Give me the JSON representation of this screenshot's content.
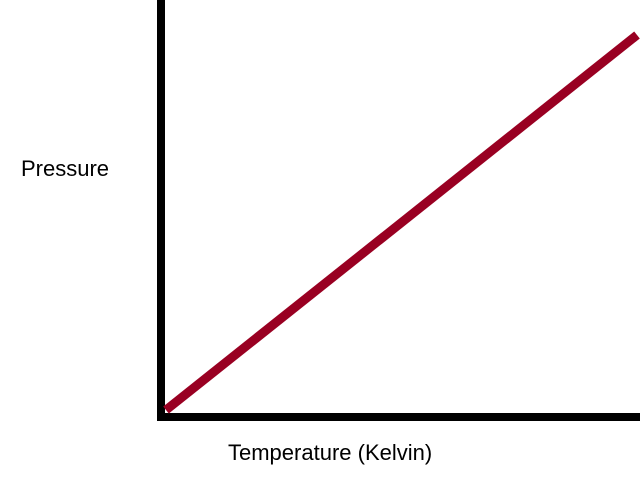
{
  "chart_data": {
    "type": "line",
    "title": "",
    "xlabel": "Temperature (Kelvin)",
    "ylabel": "Pressure",
    "xlim": [
      0,
      1
    ],
    "ylim": [
      0,
      1
    ],
    "grid": false,
    "series": [
      {
        "color": "#990022",
        "x": [
          0,
          1
        ],
        "y": [
          0,
          1
        ]
      }
    ]
  },
  "colors": {
    "axis": "#000000",
    "line": "#990022",
    "background": "#ffffff"
  }
}
